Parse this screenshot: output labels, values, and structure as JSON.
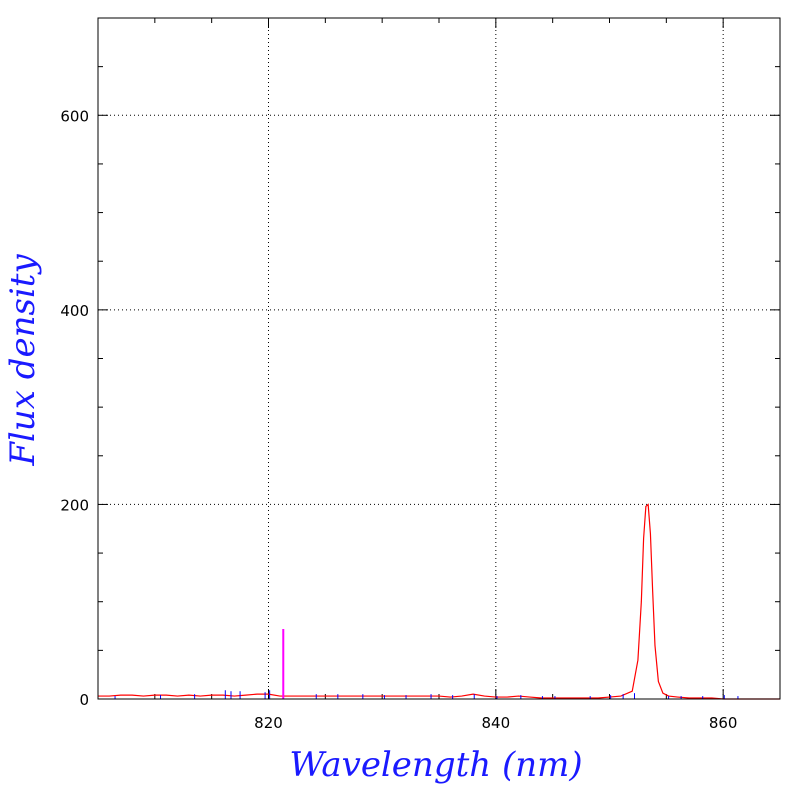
{
  "chart_data": {
    "type": "line",
    "title": "",
    "xlabel": "Wavelength (nm)",
    "ylabel": "Flux density",
    "xlim": [
      805,
      865
    ],
    "ylim": [
      0,
      700
    ],
    "x_ticks": [
      820,
      840,
      860
    ],
    "y_ticks": [
      0,
      200,
      400,
      600
    ],
    "x_tick_labels": [
      "820",
      "840",
      "860"
    ],
    "y_tick_labels": [
      "0",
      "200",
      "400",
      "600"
    ],
    "grid": true,
    "legend": "none",
    "series": [
      {
        "color": "#ff0000",
        "style": "line",
        "x": [
          805,
          806,
          807,
          808,
          809,
          810,
          811,
          812,
          813,
          814,
          815,
          816,
          817,
          818,
          819,
          820,
          821,
          822,
          823,
          824,
          825,
          826,
          827,
          828,
          829,
          830,
          831,
          832,
          833,
          834,
          835,
          836,
          837,
          838,
          839,
          840,
          841,
          842,
          843,
          844,
          845,
          846,
          847,
          848,
          849,
          850,
          851,
          852,
          852.5,
          852.8,
          853.0,
          853.2,
          853.4,
          853.6,
          853.8,
          854.0,
          854.3,
          854.7,
          855.2,
          856,
          857,
          858,
          859,
          860,
          861,
          862,
          863,
          864,
          865
        ],
        "y": [
          3,
          3,
          4,
          4,
          3,
          4,
          4,
          3,
          4,
          3,
          4,
          4,
          3,
          4,
          5,
          5,
          3,
          3,
          3,
          3,
          3,
          3,
          3,
          3,
          3,
          3,
          3,
          3,
          3,
          3,
          3,
          2,
          3,
          5,
          3,
          2,
          2,
          3,
          2,
          1,
          1,
          1,
          1,
          1,
          1,
          2,
          3,
          8,
          40,
          100,
          165,
          198,
          200,
          170,
          110,
          55,
          18,
          6,
          3,
          2,
          1,
          1,
          1,
          0,
          0,
          0,
          0,
          0,
          0
        ]
      },
      {
        "color": "#0000ff",
        "style": "sticks",
        "x": [
          806.5,
          810.5,
          813.5,
          816.2,
          816.7,
          817.5,
          819.7,
          820.1,
          824.2,
          826.1,
          828.3,
          830.2,
          832.1,
          834.3,
          836.2,
          838.1,
          840.1,
          842.2,
          844.1,
          845.2,
          848.3,
          850.1,
          851.2,
          852.2,
          855.2,
          856.3,
          858.2,
          860.1,
          861.3
        ],
        "y": [
          3,
          4,
          5,
          9,
          8,
          8,
          7,
          9,
          5,
          5,
          5,
          4,
          4,
          5,
          4,
          5,
          3,
          4,
          3,
          3,
          3,
          4,
          5,
          6,
          3,
          3,
          3,
          4,
          3
        ]
      },
      {
        "color": "#ff00ff",
        "style": "sticks",
        "x": [
          821.3
        ],
        "y": [
          72
        ]
      }
    ]
  }
}
